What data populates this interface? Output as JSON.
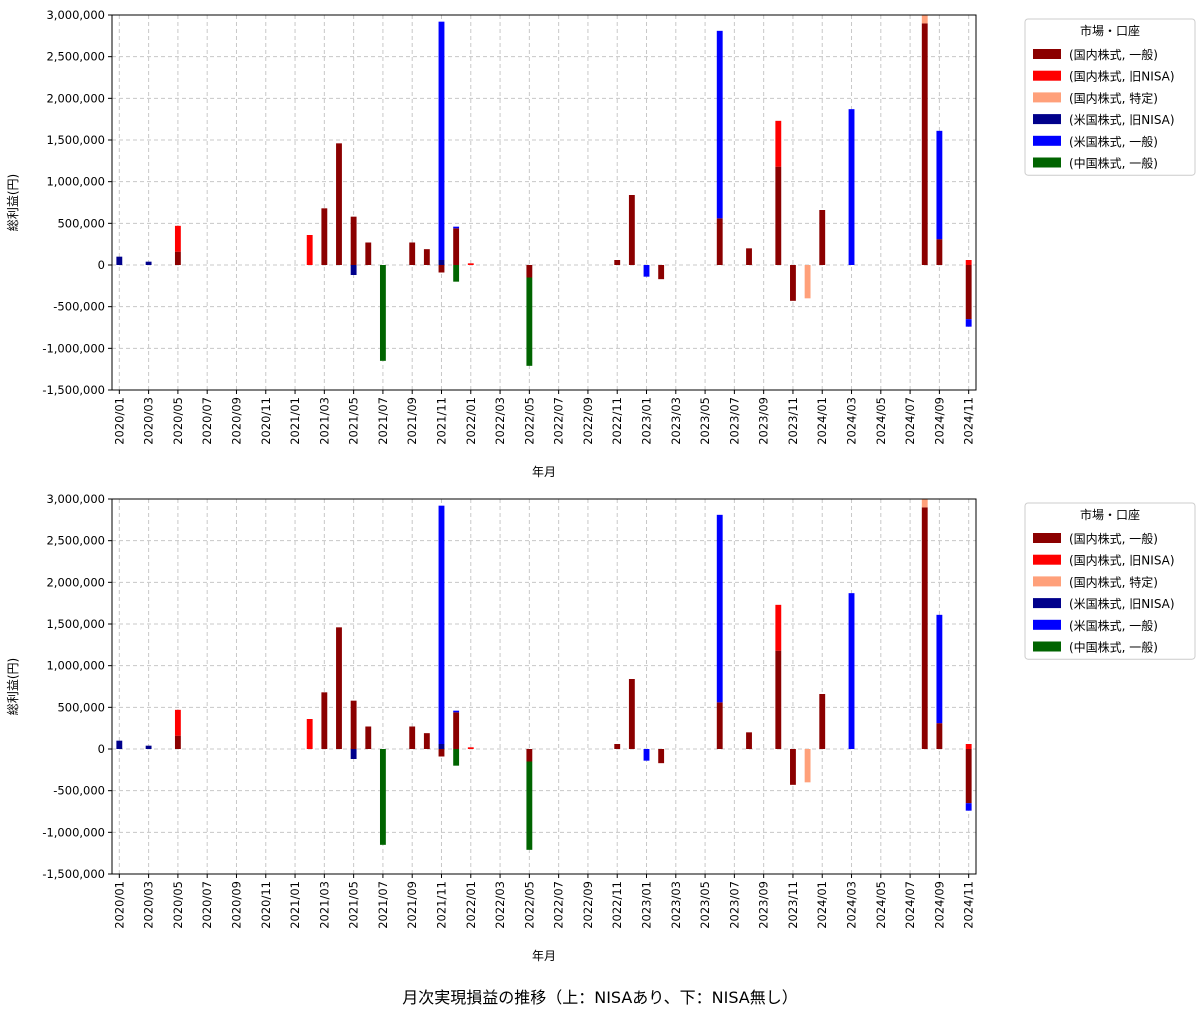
{
  "figure_title": "月次実現損益の推移（上：NISAあり、下：NISA無し）",
  "legend": {
    "title": "市場・口座",
    "items": [
      {
        "label": "(国内株式, 一般)",
        "color": "#8b0000"
      },
      {
        "label": "(国内株式, 旧NISA)",
        "color": "#ff0000"
      },
      {
        "label": "(国内株式, 特定)",
        "color": "#ffa07a"
      },
      {
        "label": "(米国株式, 旧NISA)",
        "color": "#00008b"
      },
      {
        "label": "(米国株式, 一般)",
        "color": "#0000ff"
      },
      {
        "label": "(中国株式, 一般)",
        "color": "#006400"
      }
    ]
  },
  "chart_data": [
    {
      "type": "bar",
      "stacked": true,
      "xlabel": "年月",
      "ylabel": "総利益(円)",
      "ylim": [
        -1500000,
        3000000
      ],
      "yticks": [
        -1500000,
        -1000000,
        -500000,
        0,
        500000,
        1000000,
        1500000,
        2000000,
        2500000,
        3000000
      ],
      "ytick_labels": [
        "-1,500,000",
        "-1,000,000",
        "-500,000",
        "0",
        "500,000",
        "1,000,000",
        "1,500,000",
        "2,000,000",
        "2,500,000",
        "3,000,000"
      ],
      "grid": true,
      "legend_position": "outside-right",
      "categories": [
        "2020/01",
        "2020/02",
        "2020/03",
        "2020/04",
        "2020/05",
        "2020/06",
        "2020/07",
        "2020/08",
        "2020/09",
        "2020/10",
        "2020/11",
        "2020/12",
        "2021/01",
        "2021/02",
        "2021/03",
        "2021/04",
        "2021/05",
        "2021/06",
        "2021/07",
        "2021/08",
        "2021/09",
        "2021/10",
        "2021/11",
        "2021/12",
        "2022/01",
        "2022/02",
        "2022/03",
        "2022/04",
        "2022/05",
        "2022/06",
        "2022/07",
        "2022/08",
        "2022/09",
        "2022/10",
        "2022/11",
        "2022/12",
        "2023/01",
        "2023/02",
        "2023/03",
        "2023/04",
        "2023/05",
        "2023/06",
        "2023/07",
        "2023/08",
        "2023/09",
        "2023/10",
        "2023/11",
        "2023/12",
        "2024/01",
        "2024/02",
        "2024/03",
        "2024/04",
        "2024/05",
        "2024/06",
        "2024/07",
        "2024/08",
        "2024/09",
        "2024/10",
        "2024/11"
      ],
      "tick_labels": [
        "2020/01",
        "2020/03",
        "2020/05",
        "2020/07",
        "2020/09",
        "2020/11",
        "2021/01",
        "2021/03",
        "2021/05",
        "2021/07",
        "2021/09",
        "2021/11",
        "2022/01",
        "2022/03",
        "2022/05",
        "2022/07",
        "2022/09",
        "2022/11",
        "2023/01",
        "2023/03",
        "2023/05",
        "2023/07",
        "2023/09",
        "2023/11",
        "2024/01",
        "2024/03",
        "2024/05",
        "2024/07",
        "2024/09",
        "2024/11"
      ],
      "series": [
        {
          "name": "(国内株式, 一般)",
          "color": "#8b0000",
          "values": [
            0,
            0,
            0,
            0,
            160000,
            0,
            0,
            0,
            0,
            0,
            0,
            0,
            0,
            0,
            680000,
            1460000,
            580000,
            270000,
            0,
            0,
            270000,
            190000,
            -90000,
            440000,
            0,
            0,
            0,
            0,
            -150000,
            0,
            0,
            0,
            0,
            0,
            60000,
            840000,
            0,
            -170000,
            0,
            0,
            0,
            560000,
            0,
            200000,
            0,
            1180000,
            -430000,
            0,
            660000,
            0,
            0,
            0,
            0,
            0,
            0,
            2900000,
            310000,
            0,
            -650000
          ]
        },
        {
          "name": "(国内株式, 旧NISA)",
          "color": "#ff0000",
          "values": [
            0,
            0,
            0,
            0,
            310000,
            0,
            0,
            0,
            0,
            0,
            0,
            0,
            0,
            360000,
            0,
            0,
            0,
            0,
            0,
            0,
            0,
            0,
            0,
            0,
            20000,
            0,
            0,
            0,
            0,
            0,
            0,
            0,
            0,
            0,
            0,
            0,
            0,
            0,
            0,
            0,
            0,
            0,
            0,
            0,
            0,
            550000,
            0,
            0,
            0,
            0,
            0,
            0,
            0,
            0,
            0,
            0,
            0,
            0,
            60000
          ]
        },
        {
          "name": "(国内株式, 特定)",
          "color": "#ffa07a",
          "values": [
            0,
            0,
            0,
            0,
            0,
            0,
            0,
            0,
            0,
            0,
            0,
            0,
            0,
            0,
            0,
            0,
            0,
            0,
            0,
            0,
            0,
            0,
            0,
            0,
            0,
            0,
            0,
            0,
            0,
            0,
            0,
            0,
            0,
            0,
            0,
            0,
            0,
            0,
            0,
            0,
            0,
            0,
            0,
            0,
            0,
            0,
            0,
            -400000,
            0,
            0,
            0,
            0,
            0,
            0,
            0,
            100000,
            0,
            0,
            0
          ]
        },
        {
          "name": "(米国株式, 旧NISA)",
          "color": "#00008b",
          "values": [
            100000,
            0,
            40000,
            0,
            0,
            0,
            0,
            0,
            0,
            0,
            0,
            0,
            0,
            0,
            0,
            0,
            -120000,
            0,
            0,
            0,
            0,
            0,
            60000,
            0,
            0,
            0,
            0,
            0,
            0,
            0,
            0,
            0,
            0,
            0,
            0,
            0,
            0,
            0,
            0,
            0,
            0,
            0,
            0,
            0,
            0,
            0,
            0,
            0,
            0,
            0,
            0,
            0,
            0,
            0,
            0,
            0,
            0,
            0,
            0
          ]
        },
        {
          "name": "(米国株式, 一般)",
          "color": "#0000ff",
          "values": [
            0,
            0,
            0,
            0,
            0,
            0,
            0,
            0,
            0,
            0,
            0,
            0,
            0,
            0,
            0,
            0,
            0,
            0,
            0,
            0,
            0,
            0,
            2860000,
            20000,
            0,
            0,
            0,
            0,
            0,
            0,
            0,
            0,
            0,
            0,
            0,
            0,
            -140000,
            0,
            0,
            0,
            0,
            2250000,
            0,
            0,
            0,
            0,
            0,
            0,
            0,
            0,
            1870000,
            0,
            0,
            0,
            0,
            0,
            1300000,
            0,
            -90000
          ]
        },
        {
          "name": "(中国株式, 一般)",
          "color": "#006400",
          "values": [
            0,
            0,
            0,
            0,
            0,
            0,
            0,
            0,
            0,
            0,
            0,
            0,
            0,
            0,
            0,
            0,
            0,
            0,
            -1150000,
            0,
            0,
            0,
            0,
            -200000,
            0,
            0,
            0,
            0,
            -1060000,
            0,
            0,
            0,
            0,
            0,
            0,
            0,
            0,
            0,
            0,
            0,
            0,
            0,
            0,
            0,
            0,
            0,
            0,
            0,
            0,
            0,
            0,
            0,
            0,
            0,
            0,
            0,
            0,
            0,
            0
          ]
        }
      ]
    },
    {
      "type": "bar",
      "stacked": true,
      "xlabel": "年月",
      "ylabel": "総利益(円)",
      "ylim": [
        -1500000,
        3000000
      ],
      "yticks": [
        -1500000,
        -1000000,
        -500000,
        0,
        500000,
        1000000,
        1500000,
        2000000,
        2500000,
        3000000
      ],
      "ytick_labels": [
        "-1,500,000",
        "-1,000,000",
        "-500,000",
        "0",
        "500,000",
        "1,000,000",
        "1,500,000",
        "2,000,000",
        "2,500,000",
        "3,000,000"
      ],
      "grid": true,
      "legend_position": "outside-right",
      "categories": [
        "2020/01",
        "2020/02",
        "2020/03",
        "2020/04",
        "2020/05",
        "2020/06",
        "2020/07",
        "2020/08",
        "2020/09",
        "2020/10",
        "2020/11",
        "2020/12",
        "2021/01",
        "2021/02",
        "2021/03",
        "2021/04",
        "2021/05",
        "2021/06",
        "2021/07",
        "2021/08",
        "2021/09",
        "2021/10",
        "2021/11",
        "2021/12",
        "2022/01",
        "2022/02",
        "2022/03",
        "2022/04",
        "2022/05",
        "2022/06",
        "2022/07",
        "2022/08",
        "2022/09",
        "2022/10",
        "2022/11",
        "2022/12",
        "2023/01",
        "2023/02",
        "2023/03",
        "2023/04",
        "2023/05",
        "2023/06",
        "2023/07",
        "2023/08",
        "2023/09",
        "2023/10",
        "2023/11",
        "2023/12",
        "2024/01",
        "2024/02",
        "2024/03",
        "2024/04",
        "2024/05",
        "2024/06",
        "2024/07",
        "2024/08",
        "2024/09",
        "2024/10",
        "2024/11"
      ],
      "tick_labels": [
        "2020/01",
        "2020/03",
        "2020/05",
        "2020/07",
        "2020/09",
        "2020/11",
        "2021/01",
        "2021/03",
        "2021/05",
        "2021/07",
        "2021/09",
        "2021/11",
        "2022/01",
        "2022/03",
        "2022/05",
        "2022/07",
        "2022/09",
        "2022/11",
        "2023/01",
        "2023/03",
        "2023/05",
        "2023/07",
        "2023/09",
        "2023/11",
        "2024/01",
        "2024/03",
        "2024/05",
        "2024/07",
        "2024/09",
        "2024/11"
      ],
      "series": [
        {
          "name": "(国内株式, 一般)",
          "color": "#8b0000",
          "values": [
            0,
            0,
            0,
            0,
            160000,
            0,
            0,
            0,
            0,
            0,
            0,
            0,
            0,
            0,
            680000,
            1460000,
            580000,
            270000,
            0,
            0,
            270000,
            190000,
            -90000,
            440000,
            0,
            0,
            0,
            0,
            -150000,
            0,
            0,
            0,
            0,
            0,
            60000,
            840000,
            0,
            -170000,
            0,
            0,
            0,
            560000,
            0,
            200000,
            0,
            1180000,
            -430000,
            0,
            660000,
            0,
            0,
            0,
            0,
            0,
            0,
            2900000,
            310000,
            0,
            -650000
          ]
        },
        {
          "name": "(国内株式, 旧NISA)",
          "color": "#ff0000",
          "values": [
            0,
            0,
            0,
            0,
            310000,
            0,
            0,
            0,
            0,
            0,
            0,
            0,
            0,
            360000,
            0,
            0,
            0,
            0,
            0,
            0,
            0,
            0,
            0,
            0,
            20000,
            0,
            0,
            0,
            0,
            0,
            0,
            0,
            0,
            0,
            0,
            0,
            0,
            0,
            0,
            0,
            0,
            0,
            0,
            0,
            0,
            550000,
            0,
            0,
            0,
            0,
            0,
            0,
            0,
            0,
            0,
            0,
            0,
            0,
            60000
          ]
        },
        {
          "name": "(国内株式, 特定)",
          "color": "#ffa07a",
          "values": [
            0,
            0,
            0,
            0,
            0,
            0,
            0,
            0,
            0,
            0,
            0,
            0,
            0,
            0,
            0,
            0,
            0,
            0,
            0,
            0,
            0,
            0,
            0,
            0,
            0,
            0,
            0,
            0,
            0,
            0,
            0,
            0,
            0,
            0,
            0,
            0,
            0,
            0,
            0,
            0,
            0,
            0,
            0,
            0,
            0,
            0,
            0,
            -400000,
            0,
            0,
            0,
            0,
            0,
            0,
            0,
            100000,
            0,
            0,
            0
          ]
        },
        {
          "name": "(米国株式, 旧NISA)",
          "color": "#00008b",
          "values": [
            100000,
            0,
            40000,
            0,
            0,
            0,
            0,
            0,
            0,
            0,
            0,
            0,
            0,
            0,
            0,
            0,
            -120000,
            0,
            0,
            0,
            0,
            0,
            60000,
            0,
            0,
            0,
            0,
            0,
            0,
            0,
            0,
            0,
            0,
            0,
            0,
            0,
            0,
            0,
            0,
            0,
            0,
            0,
            0,
            0,
            0,
            0,
            0,
            0,
            0,
            0,
            0,
            0,
            0,
            0,
            0,
            0,
            0,
            0,
            0
          ]
        },
        {
          "name": "(米国株式, 一般)",
          "color": "#0000ff",
          "values": [
            0,
            0,
            0,
            0,
            0,
            0,
            0,
            0,
            0,
            0,
            0,
            0,
            0,
            0,
            0,
            0,
            0,
            0,
            0,
            0,
            0,
            0,
            2860000,
            20000,
            0,
            0,
            0,
            0,
            0,
            0,
            0,
            0,
            0,
            0,
            0,
            0,
            -140000,
            0,
            0,
            0,
            0,
            2250000,
            0,
            0,
            0,
            0,
            0,
            0,
            0,
            0,
            1870000,
            0,
            0,
            0,
            0,
            0,
            1300000,
            0,
            -90000
          ]
        },
        {
          "name": "(中国株式, 一般)",
          "color": "#006400",
          "values": [
            0,
            0,
            0,
            0,
            0,
            0,
            0,
            0,
            0,
            0,
            0,
            0,
            0,
            0,
            0,
            0,
            0,
            0,
            -1150000,
            0,
            0,
            0,
            0,
            -200000,
            0,
            0,
            0,
            0,
            -1060000,
            0,
            0,
            0,
            0,
            0,
            0,
            0,
            0,
            0,
            0,
            0,
            0,
            0,
            0,
            0,
            0,
            0,
            0,
            0,
            0,
            0,
            0,
            0,
            0,
            0,
            0,
            0,
            0,
            0,
            0
          ]
        }
      ]
    }
  ]
}
